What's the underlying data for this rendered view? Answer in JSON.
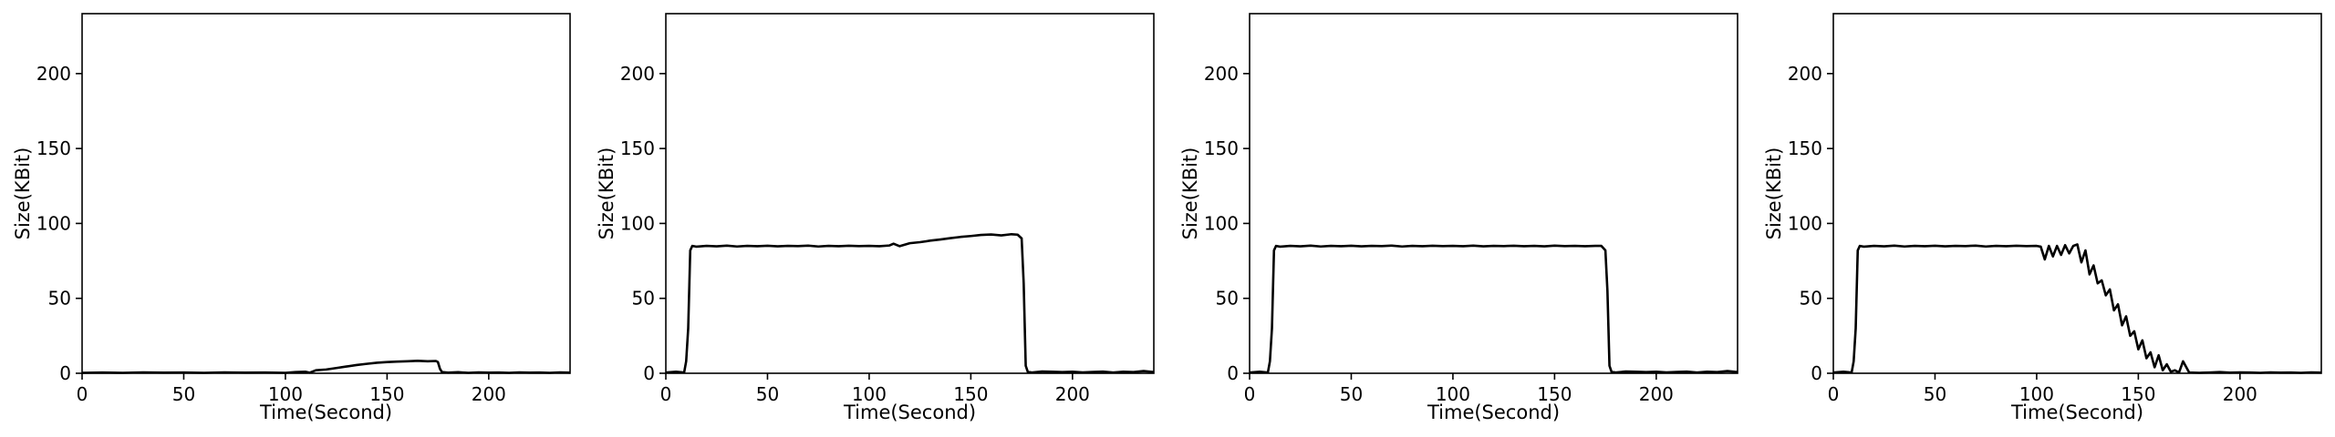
{
  "chart_data": [
    {
      "type": "line",
      "title": "",
      "xlabel": "Time(Second)",
      "ylabel": "Size(KBit)",
      "xlim": [
        0,
        240
      ],
      "ylim": [
        0,
        240
      ],
      "xticks": [
        0,
        50,
        100,
        150,
        200
      ],
      "yticks": [
        0,
        50,
        100,
        150,
        200
      ],
      "grid": false,
      "series": [
        {
          "color": "#000000",
          "x": [
            0,
            10,
            20,
            30,
            40,
            50,
            60,
            70,
            80,
            90,
            100,
            105,
            110,
            112,
            115,
            120,
            125,
            130,
            135,
            140,
            145,
            150,
            155,
            160,
            165,
            170,
            174,
            175,
            176,
            177,
            180,
            185,
            190,
            195,
            200,
            205,
            210,
            215,
            220,
            225,
            230,
            235,
            240
          ],
          "y": [
            0.3,
            0.5,
            0.3,
            0.6,
            0.4,
            0.5,
            0.3,
            0.6,
            0.4,
            0.5,
            0.3,
            0.8,
            1.0,
            0.4,
            2.0,
            2.5,
            3.5,
            4.5,
            5.5,
            6.3,
            7.0,
            7.5,
            7.8,
            8.0,
            8.3,
            8.0,
            8.2,
            7.5,
            3.0,
            0.8,
            0.4,
            0.7,
            0.3,
            0.6,
            0.4,
            0.5,
            0.3,
            0.6,
            0.4,
            0.5,
            0.3,
            0.6,
            0.4
          ]
        }
      ]
    },
    {
      "type": "line",
      "title": "",
      "xlabel": "Time(Second)",
      "ylabel": "Size(KBit)",
      "xlim": [
        0,
        240
      ],
      "ylim": [
        0,
        240
      ],
      "xticks": [
        0,
        50,
        100,
        150,
        200
      ],
      "yticks": [
        0,
        50,
        100,
        150,
        200
      ],
      "grid": false,
      "series": [
        {
          "color": "#000000",
          "x": [
            0,
            5,
            9,
            10,
            11,
            12,
            13,
            15,
            20,
            25,
            30,
            35,
            40,
            45,
            50,
            55,
            60,
            65,
            70,
            75,
            80,
            85,
            90,
            95,
            100,
            105,
            110,
            112,
            115,
            120,
            125,
            130,
            135,
            140,
            145,
            150,
            155,
            160,
            165,
            170,
            173,
            175,
            176,
            177,
            178,
            180,
            185,
            190,
            195,
            200,
            205,
            210,
            215,
            220,
            225,
            230,
            235,
            240
          ],
          "y": [
            0.5,
            1.0,
            0.5,
            8.0,
            30.0,
            82.0,
            85.0,
            84.5,
            85.0,
            84.7,
            85.2,
            84.6,
            85.0,
            84.8,
            85.1,
            84.7,
            85.0,
            84.9,
            85.2,
            84.6,
            85.0,
            84.8,
            85.1,
            84.9,
            85.0,
            84.8,
            85.3,
            86.5,
            84.8,
            86.8,
            87.5,
            88.5,
            89.3,
            90.2,
            91.0,
            91.6,
            92.3,
            92.6,
            92.0,
            92.8,
            92.5,
            90.0,
            60.0,
            5.0,
            1.0,
            0.5,
            1.2,
            1.0,
            0.8,
            1.0,
            0.6,
            0.9,
            1.1,
            0.5,
            1.0,
            0.8,
            1.5,
            0.8
          ]
        }
      ]
    },
    {
      "type": "line",
      "title": "",
      "xlabel": "Time(Second)",
      "ylabel": "Size(KBit)",
      "xlim": [
        0,
        240
      ],
      "ylim": [
        0,
        240
      ],
      "xticks": [
        0,
        50,
        100,
        150,
        200
      ],
      "yticks": [
        0,
        50,
        100,
        150,
        200
      ],
      "grid": false,
      "series": [
        {
          "color": "#000000",
          "x": [
            0,
            5,
            9,
            10,
            11,
            12,
            13,
            15,
            20,
            25,
            30,
            35,
            40,
            45,
            50,
            55,
            60,
            65,
            70,
            75,
            80,
            85,
            90,
            95,
            100,
            105,
            110,
            115,
            120,
            125,
            130,
            135,
            140,
            145,
            150,
            155,
            160,
            165,
            170,
            173,
            175,
            176,
            177,
            178,
            180,
            185,
            190,
            195,
            200,
            205,
            210,
            215,
            220,
            225,
            230,
            235,
            240
          ],
          "y": [
            0.5,
            1.0,
            0.5,
            8.0,
            30.0,
            82.0,
            85.0,
            84.5,
            85.0,
            84.7,
            85.2,
            84.6,
            85.0,
            84.8,
            85.1,
            84.7,
            85.0,
            84.9,
            85.2,
            84.6,
            85.0,
            84.8,
            85.1,
            84.9,
            85.0,
            84.8,
            85.2,
            84.7,
            85.0,
            84.9,
            85.1,
            84.8,
            85.0,
            84.7,
            85.2,
            84.9,
            85.0,
            84.8,
            85.0,
            85.0,
            82.0,
            55.0,
            5.0,
            1.0,
            0.5,
            1.2,
            1.0,
            0.8,
            1.0,
            0.6,
            0.9,
            1.1,
            0.5,
            1.0,
            0.8,
            1.5,
            0.8
          ]
        }
      ]
    },
    {
      "type": "line",
      "title": "",
      "xlabel": "Time(Second)",
      "ylabel": "Size(KBit)",
      "xlim": [
        0,
        240
      ],
      "ylim": [
        0,
        240
      ],
      "xticks": [
        0,
        50,
        100,
        150,
        200
      ],
      "yticks": [
        0,
        50,
        100,
        150,
        200
      ],
      "grid": false,
      "series": [
        {
          "color": "#000000",
          "x": [
            0,
            5,
            9,
            10,
            11,
            12,
            13,
            15,
            20,
            25,
            30,
            35,
            40,
            45,
            50,
            55,
            60,
            65,
            70,
            75,
            80,
            85,
            90,
            95,
            100,
            102,
            104,
            106,
            108,
            110,
            112,
            114,
            116,
            118,
            120,
            122,
            124,
            126,
            128,
            130,
            132,
            134,
            136,
            138,
            140,
            142,
            144,
            146,
            148,
            150,
            152,
            154,
            156,
            158,
            160,
            162,
            164,
            166,
            168,
            170,
            172,
            175,
            180,
            185,
            190,
            195,
            200,
            205,
            210,
            215,
            220,
            225,
            230,
            235,
            240
          ],
          "y": [
            0.5,
            1.0,
            0.5,
            8.0,
            30.0,
            82.0,
            85.0,
            84.5,
            85.0,
            84.7,
            85.2,
            84.6,
            85.0,
            84.8,
            85.1,
            84.7,
            85.0,
            84.9,
            85.2,
            84.6,
            85.0,
            84.8,
            85.1,
            84.9,
            85.0,
            84.5,
            76.0,
            85.0,
            78.0,
            85.0,
            79.0,
            85.5,
            80.0,
            85.0,
            86.0,
            74.0,
            82.0,
            66.0,
            72.0,
            60.0,
            62.0,
            52.0,
            56.0,
            42.0,
            46.0,
            32.0,
            38.0,
            25.0,
            28.0,
            16.0,
            22.0,
            10.0,
            14.0,
            4.0,
            12.0,
            2.0,
            6.0,
            1.0,
            2.0,
            0.5,
            8.0,
            0.5,
            0.3,
            0.5,
            0.8,
            0.4,
            0.6,
            0.5,
            0.3,
            0.6,
            0.4,
            0.5,
            0.3,
            0.6,
            0.4
          ]
        }
      ]
    }
  ]
}
